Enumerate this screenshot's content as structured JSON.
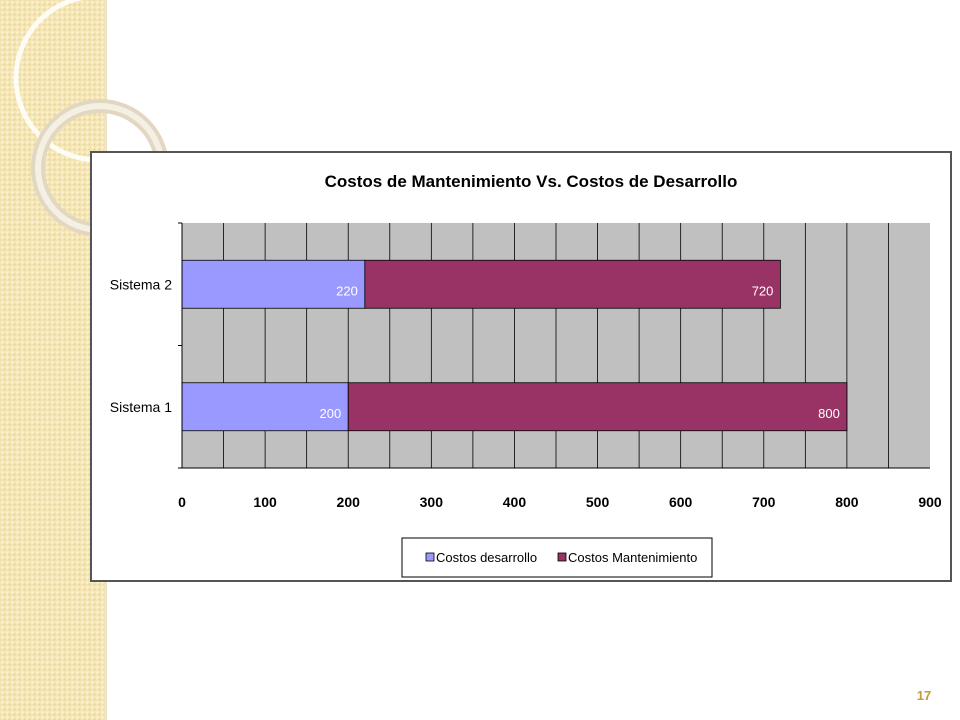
{
  "slide": {
    "number": "17"
  },
  "chart_data": {
    "type": "bar",
    "orientation": "horizontal",
    "stacked": true,
    "title": "Costos de Mantenimiento Vs. Costos de Desarrollo",
    "categories": [
      "Sistema 2",
      "Sistema 1"
    ],
    "series": [
      {
        "name": "Costos desarrollo",
        "values": [
          220,
          200
        ],
        "color": "#9999ff"
      },
      {
        "name": "Costos Mantenimiento",
        "values": [
          500,
          600
        ],
        "color": "#993366"
      }
    ],
    "data_labels": [
      [
        "220",
        "200"
      ],
      [
        "720",
        "800"
      ]
    ],
    "xlim": [
      0,
      900
    ],
    "x_tick_step": 50,
    "x_tick_labels": [
      "0",
      "100",
      "200",
      "300",
      "400",
      "500",
      "600",
      "700",
      "800",
      "900"
    ],
    "plot_background": "#c0c0c0",
    "gridlines": true,
    "legend_position": "bottom"
  }
}
